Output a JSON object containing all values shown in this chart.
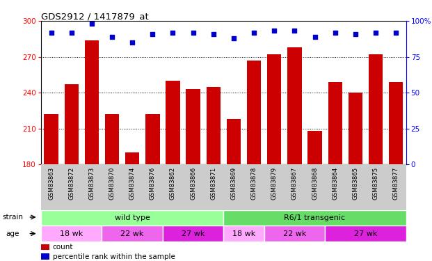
{
  "title": "GDS2912 / 1417879_at",
  "samples": [
    "GSM83863",
    "GSM83872",
    "GSM83873",
    "GSM83870",
    "GSM83874",
    "GSM83876",
    "GSM83862",
    "GSM83866",
    "GSM83871",
    "GSM83869",
    "GSM83878",
    "GSM83879",
    "GSM83867",
    "GSM83868",
    "GSM83864",
    "GSM83865",
    "GSM83875",
    "GSM83877"
  ],
  "counts": [
    222,
    247,
    284,
    222,
    190,
    222,
    250,
    243,
    245,
    218,
    267,
    272,
    278,
    208,
    249,
    240,
    272,
    249
  ],
  "percentiles": [
    92,
    92,
    98,
    89,
    85,
    91,
    92,
    92,
    91,
    88,
    92,
    93,
    93,
    89,
    92,
    91,
    92,
    92
  ],
  "ymin": 180,
  "ymax": 300,
  "yticks": [
    180,
    210,
    240,
    270,
    300
  ],
  "right_yticks": [
    0,
    25,
    50,
    75,
    100
  ],
  "bar_color": "#cc0000",
  "percentile_color": "#0000cc",
  "strain_groups": [
    {
      "label": "wild type",
      "start": 0,
      "end": 9
    },
    {
      "label": "R6/1 transgenic",
      "start": 9,
      "end": 18
    }
  ],
  "strain_colors": [
    "#99ff99",
    "#66dd66"
  ],
  "age_groups": [
    {
      "label": "18 wk",
      "start": 0,
      "end": 3
    },
    {
      "label": "22 wk",
      "start": 3,
      "end": 6
    },
    {
      "label": "27 wk",
      "start": 6,
      "end": 9
    },
    {
      "label": "18 wk",
      "start": 9,
      "end": 11
    },
    {
      "label": "22 wk",
      "start": 11,
      "end": 14
    },
    {
      "label": "27 wk",
      "start": 14,
      "end": 18
    }
  ],
  "age_colors": [
    "#ffaaff",
    "#ee66ee",
    "#dd22dd",
    "#ffaaff",
    "#ee66ee",
    "#dd22dd"
  ],
  "xtick_bg": "#cccccc",
  "legend_items": [
    "count",
    "percentile rank within the sample"
  ]
}
